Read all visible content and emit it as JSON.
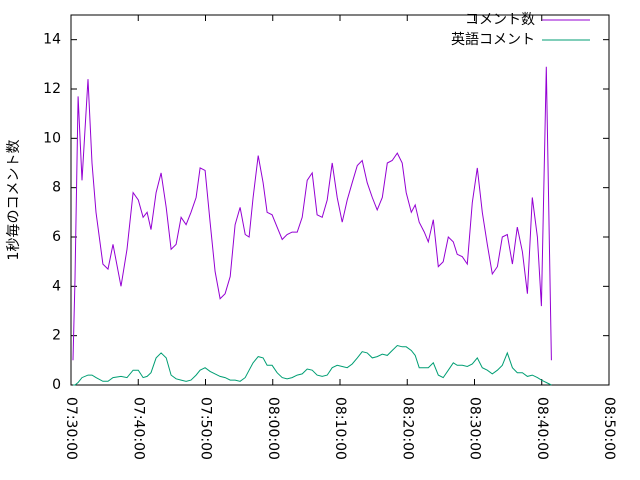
{
  "chart_data": {
    "type": "line",
    "y_label": "1秒毎のコメント数",
    "x": [
      "07:30:18",
      "07:30:36",
      "07:31:03",
      "07:31:38",
      "07:32:32",
      "07:33:07",
      "07:33:43",
      "07:34:45",
      "07:35:30",
      "07:36:15",
      "07:37:26",
      "07:38:20",
      "07:39:14",
      "07:40:00",
      "07:40:43",
      "07:41:19",
      "07:41:54",
      "07:42:39",
      "07:43:24",
      "07:44:09",
      "07:44:53",
      "07:45:38",
      "07:46:22",
      "07:47:07",
      "07:47:51",
      "07:48:36",
      "07:49:12",
      "07:49:56",
      "07:50:41",
      "07:51:26",
      "07:52:10",
      "07:52:55",
      "07:53:40",
      "07:54:24",
      "07:55:09",
      "07:55:54",
      "07:56:29",
      "07:57:05",
      "07:57:50",
      "07:58:34",
      "07:59:10",
      "07:59:54",
      "08:00:39",
      "08:01:24",
      "08:02:08",
      "08:02:53",
      "08:03:38",
      "08:04:23",
      "08:05:07",
      "08:05:52",
      "08:06:36",
      "08:07:21",
      "08:08:06",
      "08:08:50",
      "08:09:35",
      "08:10:20",
      "08:11:04",
      "08:11:49",
      "08:12:34",
      "08:13:18",
      "08:14:03",
      "08:14:48",
      "08:15:32",
      "08:16:17",
      "08:17:02",
      "08:17:46",
      "08:18:31",
      "08:19:15",
      "08:19:51",
      "08:20:36",
      "08:21:11",
      "08:21:47",
      "08:22:32",
      "08:23:08",
      "08:23:52",
      "08:24:37",
      "08:25:21",
      "08:26:06",
      "08:26:51",
      "08:27:26",
      "08:28:11",
      "08:28:56",
      "08:29:40",
      "08:30:25",
      "08:31:10",
      "08:31:54",
      "08:32:39",
      "08:33:24",
      "08:34:08",
      "08:34:53",
      "08:35:38",
      "08:36:22",
      "08:37:07",
      "08:37:52",
      "08:38:36",
      "08:39:21",
      "08:39:57",
      "08:40:41",
      "08:41:26"
    ],
    "series": [
      {
        "name": "コメント数",
        "color": "#9400d3",
        "values": [
          1.0,
          4.3,
          11.7,
          8.3,
          12.4,
          9,
          7,
          4.9,
          4.7,
          5.7,
          4.0,
          5.5,
          7.8,
          7.5,
          6.8,
          7.0,
          6.3,
          7.8,
          8.6,
          7.2,
          5.5,
          5.7,
          6.8,
          6.5,
          7.0,
          7.6,
          8.8,
          8.7,
          6.6,
          4.6,
          3.5,
          3.7,
          4.4,
          6.5,
          7.2,
          6.1,
          6.0,
          7.6,
          9.3,
          8.2,
          7.0,
          6.9,
          6.4,
          5.9,
          6.1,
          6.2,
          6.2,
          6.8,
          8.3,
          8.6,
          6.9,
          6.8,
          7.5,
          9.0,
          7.6,
          6.6,
          7.5,
          8.2,
          8.9,
          9.1,
          8.2,
          7.6,
          7.1,
          7.6,
          9.0,
          9.1,
          9.4,
          9.0,
          7.8,
          7.0,
          7.3,
          6.6,
          6.2,
          5.8,
          6.7,
          4.8,
          5.0,
          6.0,
          5.8,
          5.3,
          5.2,
          4.9,
          7.4,
          8.8,
          7.0,
          5.7,
          4.5,
          4.8,
          6.0,
          6.1,
          4.9,
          6.4,
          5.4,
          3.7,
          7.6,
          6.0,
          3.2,
          12.9,
          1.0
        ]
      },
      {
        "name": "英語コメント",
        "color": "#009e73",
        "values": [
          0,
          0,
          0.1,
          0.3,
          0.4,
          0.4,
          0.3,
          0.15,
          0.15,
          0.3,
          0.35,
          0.3,
          0.6,
          0.6,
          0.3,
          0.35,
          0.5,
          1.1,
          1.3,
          1.1,
          0.4,
          0.25,
          0.2,
          0.15,
          0.2,
          0.4,
          0.6,
          0.7,
          0.55,
          0.45,
          0.35,
          0.3,
          0.2,
          0.2,
          0.15,
          0.3,
          0.6,
          0.9,
          1.15,
          1.1,
          0.8,
          0.8,
          0.5,
          0.3,
          0.25,
          0.3,
          0.4,
          0.45,
          0.65,
          0.6,
          0.4,
          0.35,
          0.4,
          0.7,
          0.8,
          0.75,
          0.7,
          0.85,
          1.1,
          1.35,
          1.3,
          1.1,
          1.15,
          1.25,
          1.2,
          1.4,
          1.6,
          1.55,
          1.55,
          1.4,
          1.2,
          0.7,
          0.7,
          0.7,
          0.9,
          0.4,
          0.3,
          0.6,
          0.9,
          0.8,
          0.8,
          0.75,
          0.85,
          1.1,
          0.7,
          0.6,
          0.45,
          0.6,
          0.8,
          1.3,
          0.7,
          0.5,
          0.5,
          0.35,
          0.4,
          0.3,
          0.2,
          0.1,
          0
        ]
      }
    ],
    "xlim": [
      "07:30:00",
      "08:50:00"
    ],
    "xticks": [
      "07:30:00",
      "07:40:00",
      "07:50:00",
      "08:00:00",
      "08:10:00",
      "08:20:00",
      "08:30:00",
      "08:40:00",
      "08:50:00"
    ],
    "ylim": [
      0,
      15
    ],
    "yticks": [
      0,
      2,
      4,
      6,
      8,
      10,
      12,
      14
    ],
    "legend": "top-right"
  }
}
